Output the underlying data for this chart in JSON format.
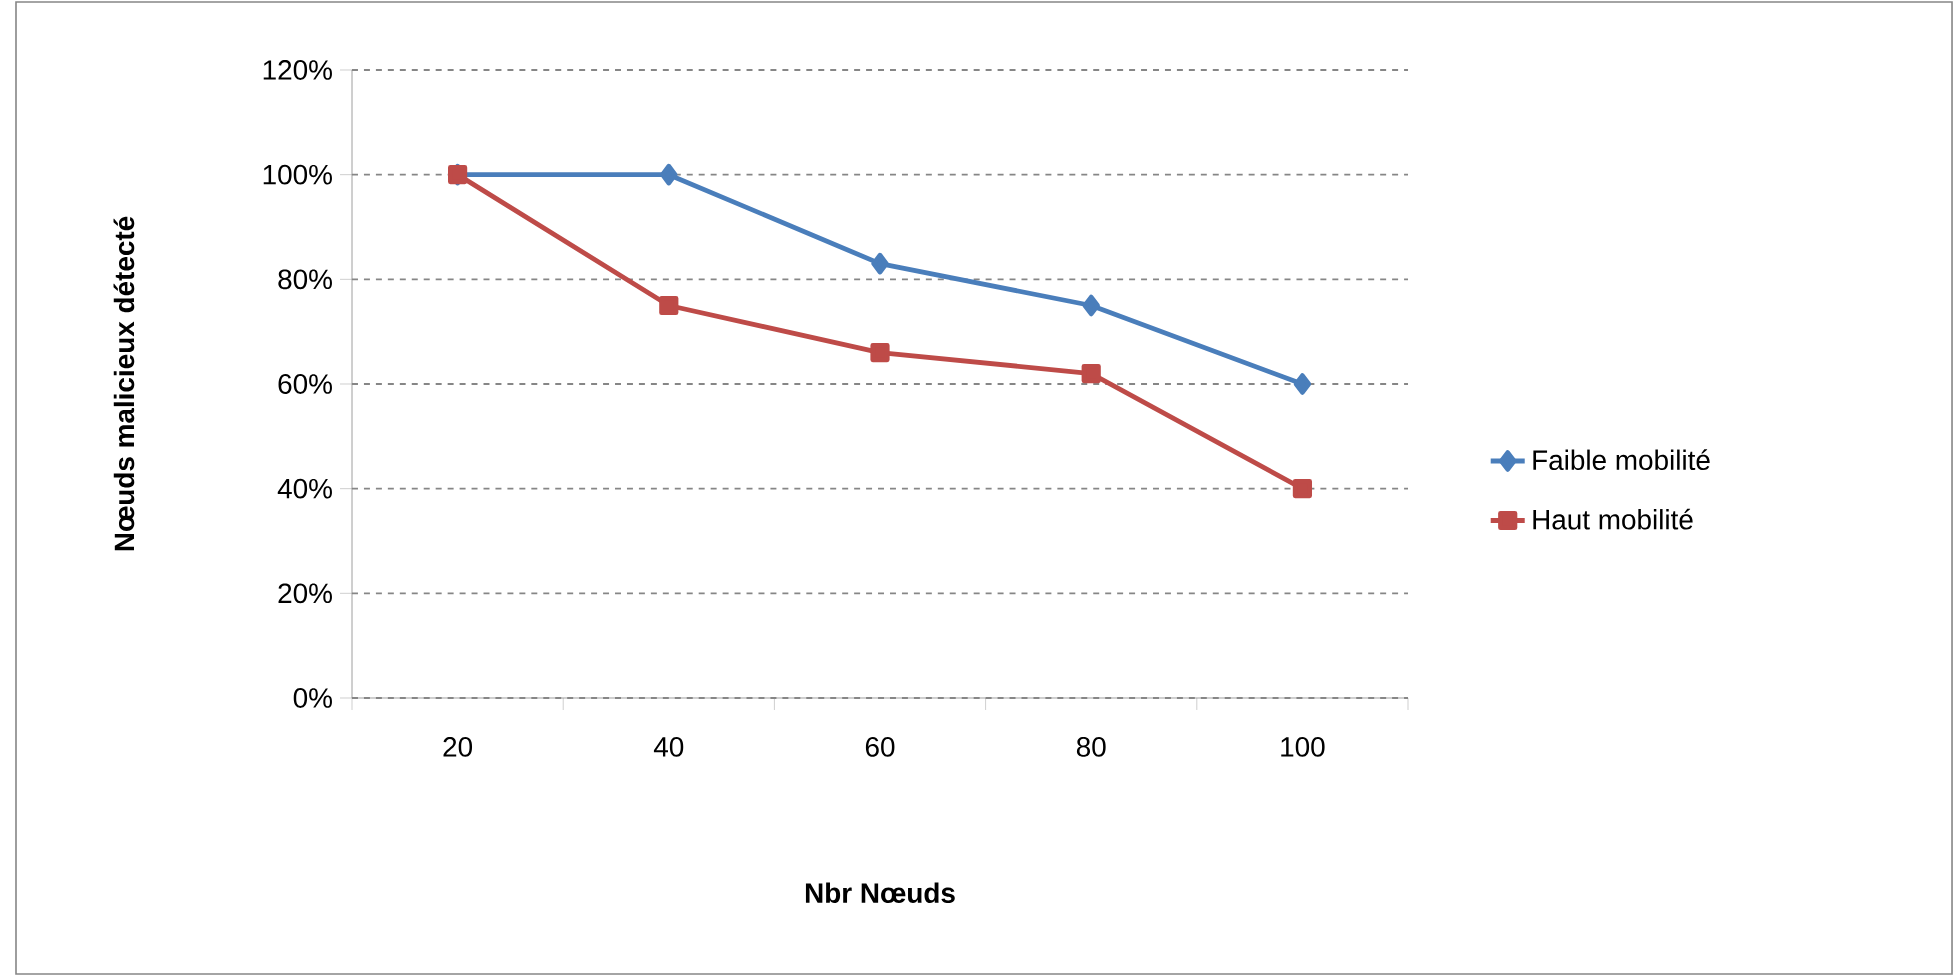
{
  "chart_data": {
    "type": "line",
    "xlabel": "Nbr Nœuds",
    "ylabel": "Nœuds malicieux détecté",
    "categories": [
      "20",
      "40",
      "60",
      "80",
      "100"
    ],
    "series": [
      {
        "name": "Faible mobilité",
        "color": "#4a7ebb",
        "marker": "diamond",
        "values": [
          100,
          100,
          83,
          75,
          60
        ]
      },
      {
        "name": "Haut mobilité",
        "color": "#be4b48",
        "marker": "square",
        "values": [
          100,
          75,
          66,
          62,
          40
        ]
      }
    ],
    "ylim": [
      0,
      120
    ],
    "yticks": [
      {
        "value": 0,
        "label": "0%"
      },
      {
        "value": 20,
        "label": "20%"
      },
      {
        "value": 40,
        "label": "40%"
      },
      {
        "value": 60,
        "label": "60%"
      },
      {
        "value": 80,
        "label": "80%"
      },
      {
        "value": 100,
        "label": "100%"
      },
      {
        "value": 120,
        "label": "120%"
      }
    ],
    "grid": "y",
    "legend": "right",
    "line_style": "solid"
  }
}
